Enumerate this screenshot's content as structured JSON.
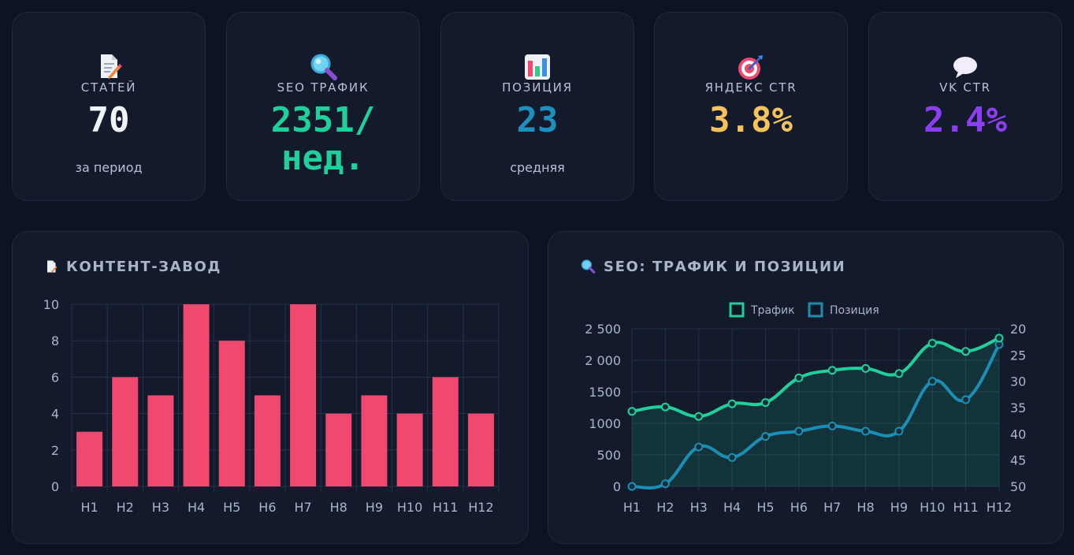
{
  "kpis": [
    {
      "icon": "document-icon",
      "label": "СТАТЕЙ",
      "value": "70",
      "sub": "за период",
      "color": "#f1f5f9"
    },
    {
      "icon": "magnifier-icon",
      "label": "SEO ТРАФИК",
      "value_line1": "2351/",
      "value_line2": "нед.",
      "color": "#1fd09a"
    },
    {
      "icon": "bar-chart-icon",
      "label": "ПОЗИЦИЯ",
      "value": "23",
      "sub": "средняя",
      "color": "#1e90c0"
    },
    {
      "icon": "target-icon",
      "label": "ЯНДЕКС CTR",
      "value": "3.8%",
      "color": "#f7c25c"
    },
    {
      "icon": "speech-bubble-icon",
      "label": "VK CTR",
      "value": "2.4%",
      "color": "#8b3ff0"
    }
  ],
  "panels": {
    "content": {
      "title": "КОНТЕНТ-ЗАВОД",
      "icon": "document-icon"
    },
    "seo": {
      "title": "SEO: ТРАФИК И ПОЗИЦИИ",
      "icon": "magnifier-icon"
    }
  },
  "chart_data": [
    {
      "type": "bar",
      "categories": [
        "H1",
        "H2",
        "H3",
        "H4",
        "H5",
        "H6",
        "H7",
        "H8",
        "H9",
        "H10",
        "H11",
        "H12"
      ],
      "values": [
        3,
        6,
        5,
        10,
        8,
        5,
        10,
        4,
        5,
        4,
        6,
        4
      ],
      "ylim": [
        0,
        10
      ],
      "yticks": [
        0,
        2,
        4,
        6,
        8,
        10
      ],
      "color": "#f0486e",
      "grid": true
    },
    {
      "type": "line",
      "categories": [
        "H1",
        "H2",
        "H3",
        "H4",
        "H5",
        "H6",
        "H7",
        "H8",
        "H9",
        "H10",
        "H11",
        "H12"
      ],
      "series": [
        {
          "name": "Трафик",
          "axis": "left",
          "color": "#1fd09a",
          "values": [
            1190,
            1260,
            1110,
            1310,
            1330,
            1720,
            1840,
            1870,
            1790,
            2270,
            2140,
            2351
          ]
        },
        {
          "name": "Позиция",
          "axis": "right",
          "color": "#1b8fb3",
          "values": [
            50,
            49.5,
            42.5,
            44.5,
            40.5,
            39.5,
            38.5,
            39.5,
            39.5,
            30,
            33.5,
            23
          ]
        }
      ],
      "ylim_left": [
        0,
        2500
      ],
      "yticks_left": [
        "0",
        "500",
        "1000",
        "1500",
        "2 000",
        "2 500"
      ],
      "ylim_right": [
        20,
        50
      ],
      "yticks_right": [
        "20",
        "25",
        "30",
        "35",
        "40",
        "45",
        "50"
      ],
      "right_axis_reversed": true,
      "area_fill": "rgba(31, 208, 154, 0.14)",
      "legend_position": "top",
      "grid": true
    }
  ]
}
